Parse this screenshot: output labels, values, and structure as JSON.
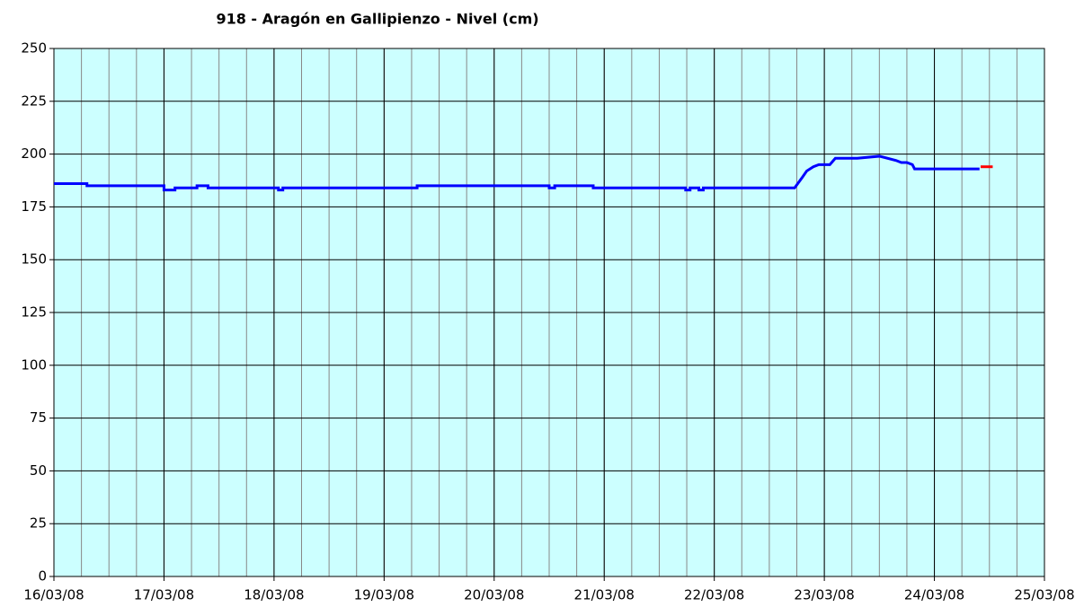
{
  "chart_data": {
    "type": "line",
    "title": "918 - Aragón en Gallipienzo - Nivel (cm)",
    "xlim": [
      0,
      9
    ],
    "xticks": [
      {
        "value": 0,
        "label": "16/03/08"
      },
      {
        "value": 1,
        "label": "17/03/08"
      },
      {
        "value": 2,
        "label": "18/03/08"
      },
      {
        "value": 3,
        "label": "19/03/08"
      },
      {
        "value": 4,
        "label": "20/03/08"
      },
      {
        "value": 5,
        "label": "21/03/08"
      },
      {
        "value": 6,
        "label": "22/03/08"
      },
      {
        "value": 7,
        "label": "23/03/08"
      },
      {
        "value": 8,
        "label": "24/03/08"
      },
      {
        "value": 9,
        "label": "25/03/08"
      }
    ],
    "x_minor_step": 0.25,
    "ylim": [
      0,
      250
    ],
    "yticks": [
      0,
      25,
      50,
      75,
      100,
      125,
      150,
      175,
      200,
      225,
      250
    ],
    "grid": true,
    "series": [
      {
        "color": "#0000ff",
        "x": [
          0,
          0.3,
          0.3,
          1.0,
          1.0,
          1.1,
          1.1,
          1.3,
          1.3,
          1.4,
          1.4,
          2.04,
          2.04,
          2.08,
          2.08,
          3.3,
          3.3,
          4.5,
          4.5,
          4.55,
          4.55,
          4.9,
          4.9,
          5.74,
          5.74,
          5.78,
          5.78,
          5.86,
          5.86,
          5.9,
          5.9,
          6.73,
          6.8,
          6.84,
          6.9,
          6.95,
          7.05,
          7.1,
          7.3,
          7.5,
          7.65,
          7.7,
          7.75,
          7.8,
          7.82,
          8.41
        ],
        "values": [
          186,
          186,
          185,
          185,
          183,
          183,
          184,
          184,
          185,
          185,
          184,
          184,
          183,
          183,
          184,
          184,
          185,
          185,
          184,
          184,
          185,
          185,
          184,
          184,
          183,
          183,
          184,
          184,
          183,
          183,
          184,
          184,
          189,
          192,
          194,
          195,
          195,
          198,
          198,
          199,
          197,
          196,
          196,
          195,
          193,
          193
        ]
      },
      {
        "color": "#ff0000",
        "x": [
          8.42,
          8.53
        ],
        "values": [
          194,
          194
        ]
      }
    ]
  }
}
